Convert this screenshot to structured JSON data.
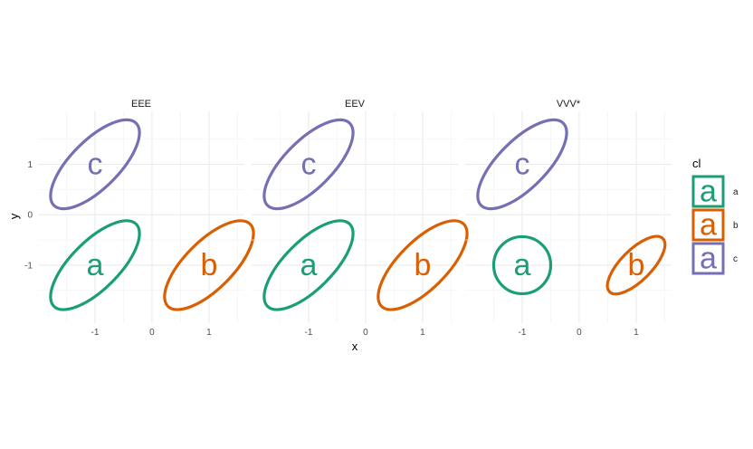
{
  "chart_data": {
    "type": "ellipse-facets",
    "xlabel": "x",
    "ylabel": "y",
    "xlim": [
      -2.0,
      1.62
    ],
    "ylim": [
      -2.15,
      2.05
    ],
    "x_ticks": [
      -1,
      0,
      1
    ],
    "y_ticks": [
      1,
      0,
      -1
    ],
    "grid": true,
    "legend": {
      "title": "cl",
      "position": "right",
      "glyph": "a",
      "entries": [
        {
          "label": "a",
          "color": "#1b9e77"
        },
        {
          "label": "b",
          "color": "#d95f02"
        },
        {
          "label": "c",
          "color": "#7570b3"
        }
      ]
    },
    "panels": [
      {
        "strip": "EEE",
        "ellipses": [
          {
            "cluster": "c",
            "label": "c",
            "center": [
              -1.0,
              1.0
            ],
            "a": 1.02,
            "b": 0.42,
            "angle_deg": 45,
            "color": "#7570b3"
          },
          {
            "cluster": "a",
            "label": "a",
            "center": [
              -1.0,
              -1.0
            ],
            "a": 1.02,
            "b": 0.42,
            "angle_deg": 45,
            "color": "#1b9e77"
          },
          {
            "cluster": "b",
            "label": "b",
            "center": [
              1.0,
              -1.0
            ],
            "a": 1.02,
            "b": 0.42,
            "angle_deg": 45,
            "color": "#d95f02"
          }
        ]
      },
      {
        "strip": "EEV",
        "ellipses": [
          {
            "cluster": "c",
            "label": "c",
            "center": [
              -1.0,
              1.0
            ],
            "a": 1.02,
            "b": 0.42,
            "angle_deg": 45,
            "color": "#7570b3"
          },
          {
            "cluster": "a",
            "label": "a",
            "center": [
              -1.0,
              -1.0
            ],
            "a": 1.02,
            "b": 0.42,
            "angle_deg": 45,
            "color": "#1b9e77"
          },
          {
            "cluster": "b",
            "label": "b",
            "center": [
              1.0,
              -1.0
            ],
            "a": 1.02,
            "b": 0.42,
            "angle_deg": 45,
            "color": "#d95f02"
          }
        ]
      },
      {
        "strip": "VVV*",
        "ellipses": [
          {
            "cluster": "c",
            "label": "c",
            "center": [
              -1.0,
              1.0
            ],
            "a": 1.02,
            "b": 0.42,
            "angle_deg": 45,
            "color": "#7570b3"
          },
          {
            "cluster": "a",
            "label": "a",
            "center": [
              -1.0,
              -1.0
            ],
            "a": 0.5,
            "b": 0.5,
            "angle_deg": 0,
            "color": "#1b9e77"
          },
          {
            "cluster": "b",
            "label": "b",
            "center": [
              1.0,
              -1.0
            ],
            "a": 0.66,
            "b": 0.27,
            "angle_deg": 45,
            "color": "#d95f02"
          }
        ]
      }
    ]
  }
}
